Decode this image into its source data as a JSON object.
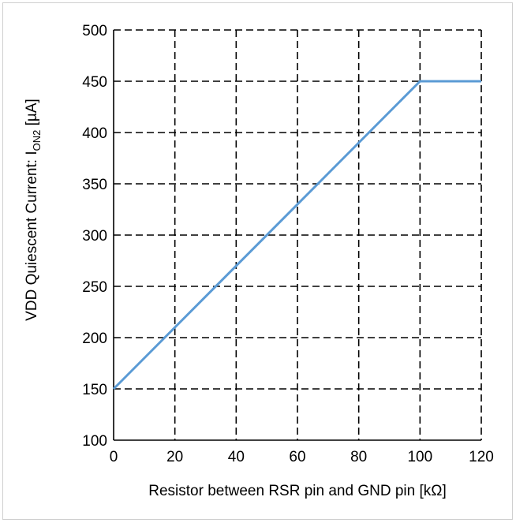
{
  "chart_data": {
    "type": "line",
    "title": "",
    "xlabel": "Resistor between RSR pin and GND pin [kΩ]",
    "ylabel_main": "VDD Quiescent Current: I",
    "ylabel_sub": "ON2",
    "ylabel_unit": " [µA]",
    "xlim": [
      0,
      120
    ],
    "ylim": [
      100,
      500
    ],
    "xticks": [
      0,
      20,
      40,
      60,
      80,
      100,
      120
    ],
    "yticks": [
      100,
      150,
      200,
      250,
      300,
      350,
      400,
      450,
      500
    ],
    "grid": true,
    "grid_style": "dashed",
    "series": [
      {
        "color": "#5b9bd5",
        "x": [
          0,
          100,
          120
        ],
        "y": [
          150,
          450,
          450
        ]
      }
    ]
  }
}
